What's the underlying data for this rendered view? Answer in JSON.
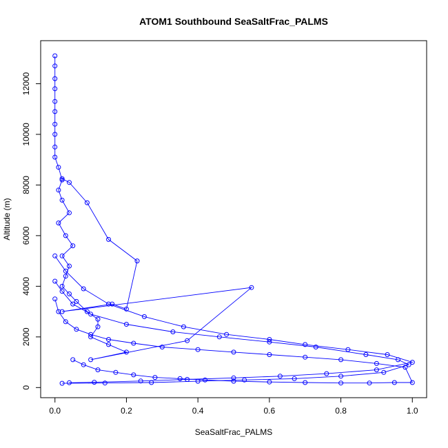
{
  "chart_data": {
    "type": "line",
    "title": "ATOM1 Southbound SeaSaltFrac_PALMS",
    "xlabel": "SeaSaltFrac_PALMS",
    "ylabel": "Altitude (m)",
    "xlim": [
      -0.04,
      1.04
    ],
    "ylim": [
      -400,
      13700
    ],
    "x_ticks": [
      0.0,
      0.2,
      0.4,
      0.6,
      0.8,
      1.0
    ],
    "x_tick_labels": [
      "0.0",
      "0.2",
      "0.4",
      "0.6",
      "0.8",
      "1.0"
    ],
    "y_ticks": [
      0,
      2000,
      4000,
      6000,
      8000,
      10000,
      12000
    ],
    "y_tick_labels": [
      "0",
      "2000",
      "4000",
      "6000",
      "8000",
      "10000",
      "12000"
    ],
    "grid": false,
    "legend": "none",
    "series_color": "#0000ff",
    "marker": "open-circle",
    "series": [
      {
        "x": [
          0.0,
          0.0,
          0.0,
          0.0,
          0.0,
          0.0,
          0.0,
          0.0,
          0.0,
          0.0,
          0.01,
          0.02,
          0.01,
          0.02,
          0.04,
          0.01,
          0.03,
          0.05,
          0.02,
          0.04,
          0.03,
          0.02,
          0.04,
          0.06,
          0.09,
          0.12,
          0.12,
          0.1,
          0.15,
          0.2,
          0.1,
          0.37,
          0.55,
          0.02,
          0.16,
          0.2,
          0.23,
          0.15,
          0.09,
          0.04,
          0.02
        ],
        "y": [
          13100,
          12700,
          12200,
          11800,
          11300,
          10900,
          10400,
          10000,
          9500,
          9100,
          8700,
          8200,
          7800,
          7400,
          6900,
          6500,
          6000,
          5600,
          5200,
          4800,
          4400,
          4000,
          3700,
          3400,
          3000,
          2700,
          2400,
          2000,
          1700,
          1400,
          1100,
          1850,
          3950,
          3000,
          3300,
          3100,
          5000,
          5850,
          7300,
          8100,
          8250
        ]
      },
      {
        "x": [
          0.0,
          0.01,
          0.03,
          0.06,
          0.1,
          0.15,
          0.22,
          0.3,
          0.4,
          0.5,
          0.6,
          0.7,
          0.8,
          0.9,
          0.98,
          1.0,
          0.95,
          0.88,
          0.8,
          0.7,
          0.6,
          0.5,
          0.42,
          0.35,
          0.28,
          0.22,
          0.17,
          0.12,
          0.08,
          0.05
        ],
        "y": [
          3500,
          3000,
          2600,
          2300,
          2100,
          1900,
          1750,
          1600,
          1500,
          1400,
          1300,
          1200,
          1100,
          950,
          800,
          200,
          200,
          180,
          180,
          200,
          220,
          250,
          300,
          350,
          400,
          500,
          600,
          700,
          900,
          1100
        ]
      },
      {
        "x": [
          0.0,
          0.02,
          0.05,
          0.1,
          0.2,
          0.33,
          0.46,
          0.6,
          0.73,
          0.87,
          0.96,
          0.99,
          0.92,
          0.8,
          0.67,
          0.53,
          0.4,
          0.27,
          0.14,
          0.02
        ],
        "y": [
          4200,
          3800,
          3300,
          2900,
          2500,
          2200,
          2000,
          1800,
          1600,
          1300,
          1100,
          900,
          600,
          450,
          350,
          300,
          250,
          200,
          180,
          170
        ]
      },
      {
        "x": [
          0.0,
          0.03,
          0.08,
          0.15,
          0.25,
          0.36,
          0.48,
          0.6,
          0.7,
          0.82,
          0.93,
          1.0,
          0.9,
          0.76,
          0.63,
          0.5,
          0.37,
          0.24,
          0.11,
          0.04
        ],
        "y": [
          5200,
          4600,
          3900,
          3300,
          2800,
          2400,
          2100,
          1900,
          1700,
          1500,
          1300,
          1000,
          700,
          550,
          450,
          380,
          320,
          260,
          210,
          190
        ]
      }
    ]
  }
}
